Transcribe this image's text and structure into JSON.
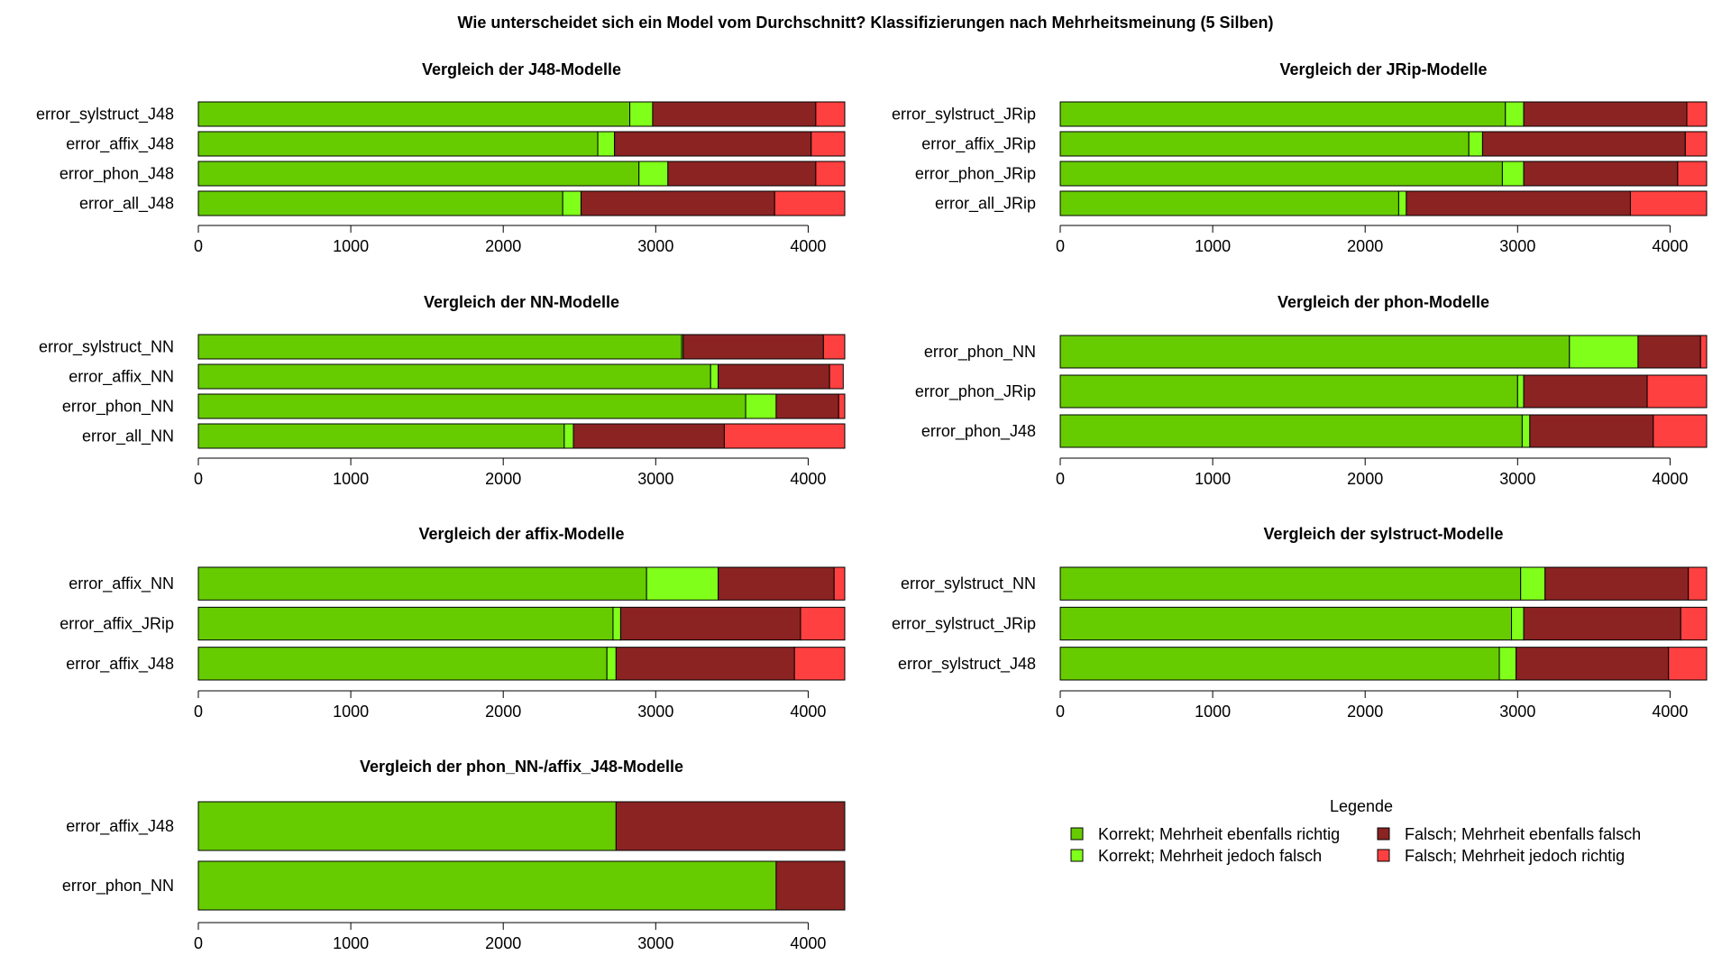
{
  "title": "Wie unterscheidet sich ein Model vom Durchschnitt? Klassifizierungen nach Mehrheitsmeinung (5 Silben)",
  "colors": {
    "correct_majority_correct": "#66cc00",
    "correct_majority_wrong": "#80ff1a",
    "wrong_majority_wrong": "#8b2323",
    "wrong_majority_correct": "#ff4040"
  },
  "legend": {
    "title": "Legende",
    "items": [
      {
        "key": "correct_majority_correct",
        "label": "Korrekt; Mehrheit ebenfalls richtig"
      },
      {
        "key": "correct_majority_wrong",
        "label": "Korrekt; Mehrheit jedoch falsch"
      },
      {
        "key": "wrong_majority_wrong",
        "label": "Falsch; Mehrheit ebenfalls falsch"
      },
      {
        "key": "wrong_majority_correct",
        "label": "Falsch; Mehrheit jedoch richtig"
      }
    ]
  },
  "chart_data": [
    {
      "type": "bar",
      "stacked": true,
      "orientation": "horizontal",
      "title": "Vergleich der J48-Modelle",
      "categories": [
        "error_sylstruct_J48",
        "error_affix_J48",
        "error_phon_J48",
        "error_all_J48"
      ],
      "segment_keys": [
        "correct_majority_correct",
        "correct_majority_wrong",
        "wrong_majority_wrong",
        "wrong_majority_correct"
      ],
      "values": [
        [
          2830,
          150,
          1070,
          190
        ],
        [
          2620,
          110,
          1290,
          220
        ],
        [
          2890,
          190,
          970,
          190
        ],
        [
          2390,
          120,
          1270,
          460
        ]
      ],
      "xticks": [
        0,
        1000,
        2000,
        3000,
        4000
      ],
      "xlim": [
        0,
        4240
      ]
    },
    {
      "type": "bar",
      "stacked": true,
      "orientation": "horizontal",
      "title": "Vergleich der JRip-Modelle",
      "categories": [
        "error_sylstruct_JRip",
        "error_affix_JRip",
        "error_phon_JRip",
        "error_all_JRip"
      ],
      "segment_keys": [
        "correct_majority_correct",
        "correct_majority_wrong",
        "wrong_majority_wrong",
        "wrong_majority_correct"
      ],
      "values": [
        [
          2920,
          120,
          1070,
          130
        ],
        [
          2680,
          90,
          1330,
          140
        ],
        [
          2900,
          140,
          1010,
          190
        ],
        [
          2220,
          50,
          1470,
          500
        ]
      ],
      "xticks": [
        0,
        1000,
        2000,
        3000,
        4000
      ],
      "xlim": [
        0,
        4240
      ]
    },
    {
      "type": "bar",
      "stacked": true,
      "orientation": "horizontal",
      "title": "Vergleich der NN-Modelle",
      "categories": [
        "error_sylstruct_NN",
        "error_affix_NN",
        "error_phon_NN",
        "error_all_NN"
      ],
      "segment_keys": [
        "correct_majority_correct",
        "correct_majority_wrong",
        "wrong_majority_wrong",
        "wrong_majority_correct"
      ],
      "values": [
        [
          3170,
          10,
          920,
          140
        ],
        [
          3360,
          50,
          730,
          90
        ],
        [
          3590,
          200,
          410,
          40
        ],
        [
          2400,
          60,
          990,
          790
        ]
      ],
      "xticks": [
        0,
        1000,
        2000,
        3000,
        4000
      ],
      "xlim": [
        0,
        4240
      ]
    },
    {
      "type": "bar",
      "stacked": true,
      "orientation": "horizontal",
      "title": "Vergleich der phon-Modelle",
      "categories": [
        "error_phon_NN",
        "error_phon_JRip",
        "error_phon_J48"
      ],
      "segment_keys": [
        "correct_majority_correct",
        "correct_majority_wrong",
        "wrong_majority_wrong",
        "wrong_majority_correct"
      ],
      "values": [
        [
          3340,
          450,
          410,
          40
        ],
        [
          3000,
          40,
          810,
          390
        ],
        [
          3030,
          50,
          810,
          350
        ]
      ],
      "xticks": [
        0,
        1000,
        2000,
        3000,
        4000
      ],
      "xlim": [
        0,
        4240
      ]
    },
    {
      "type": "bar",
      "stacked": true,
      "orientation": "horizontal",
      "title": "Vergleich der affix-Modelle",
      "categories": [
        "error_affix_NN",
        "error_affix_JRip",
        "error_affix_J48"
      ],
      "segment_keys": [
        "correct_majority_correct",
        "correct_majority_wrong",
        "wrong_majority_wrong",
        "wrong_majority_correct"
      ],
      "values": [
        [
          2940,
          470,
          760,
          70
        ],
        [
          2720,
          50,
          1180,
          290
        ],
        [
          2680,
          60,
          1170,
          330
        ]
      ],
      "xticks": [
        0,
        1000,
        2000,
        3000,
        4000
      ],
      "xlim": [
        0,
        4240
      ]
    },
    {
      "type": "bar",
      "stacked": true,
      "orientation": "horizontal",
      "title": "Vergleich der sylstruct-Modelle",
      "categories": [
        "error_sylstruct_NN",
        "error_sylstruct_JRip",
        "error_sylstruct_J48"
      ],
      "segment_keys": [
        "correct_majority_correct",
        "correct_majority_wrong",
        "wrong_majority_wrong",
        "wrong_majority_correct"
      ],
      "values": [
        [
          3020,
          160,
          940,
          120
        ],
        [
          2960,
          80,
          1030,
          170
        ],
        [
          2880,
          110,
          1000,
          250
        ]
      ],
      "xticks": [
        0,
        1000,
        2000,
        3000,
        4000
      ],
      "xlim": [
        0,
        4240
      ]
    },
    {
      "type": "bar",
      "stacked": true,
      "orientation": "horizontal",
      "title": "Vergleich der phon_NN-/affix_J48-Modelle",
      "categories": [
        "error_affix_J48",
        "error_phon_NN"
      ],
      "segment_keys": [
        "correct_majority_correct",
        "correct_majority_wrong",
        "wrong_majority_wrong",
        "wrong_majority_correct"
      ],
      "values": [
        [
          2740,
          0,
          1500,
          0
        ],
        [
          3790,
          0,
          450,
          0
        ]
      ],
      "xticks": [
        0,
        1000,
        2000,
        3000,
        4000
      ],
      "xlim": [
        0,
        4240
      ]
    }
  ]
}
